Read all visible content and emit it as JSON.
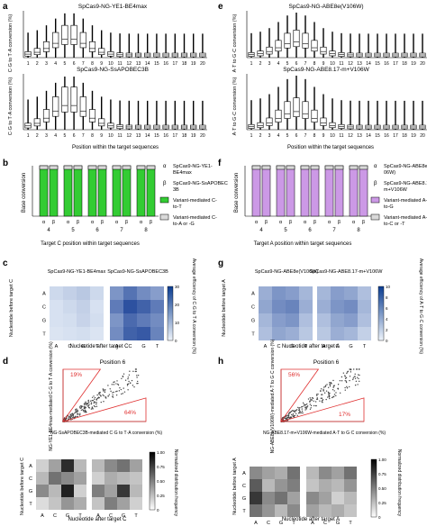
{
  "panels": {
    "a": {
      "letter": "a",
      "title_top": "SpCas9-NG-YE1-BE4max",
      "title_bottom": "SpCas9-NG-SsAPOBEC3B",
      "ylabel": "C·G to T·A conversion (%)",
      "xlabel": "Position within the target sequences",
      "positions": [
        "1",
        "2",
        "3",
        "4",
        "5",
        "6",
        "7",
        "8",
        "9",
        "10",
        "11",
        "12",
        "13",
        "14",
        "15",
        "16",
        "17",
        "18",
        "19",
        "20"
      ]
    },
    "e": {
      "letter": "e",
      "title_top": "SpCas9-NG-ABE8e(V106W)",
      "title_bottom": "SpCas9-NG-ABE8.17-m+V106W",
      "ylabel": "A·T to G·C conversion (%)",
      "xlabel": "Position within the target sequences",
      "positions": [
        "1",
        "2",
        "3",
        "4",
        "5",
        "6",
        "7",
        "8",
        "9",
        "10",
        "11",
        "12",
        "13",
        "14",
        "15",
        "16",
        "17",
        "18",
        "19",
        "20"
      ]
    },
    "b": {
      "letter": "b",
      "ylabel": "Base conversion",
      "xlabel": "Target C position within target sequences",
      "groups": [
        "4",
        "5",
        "6",
        "7",
        "8"
      ],
      "pair_labels": [
        "α",
        "β"
      ],
      "legend": [
        {
          "key": "α",
          "text": "SpCas9-NG-YE1-BE4max"
        },
        {
          "key": "β",
          "text": "SpCas9-NG-SsAPOBEC3B"
        },
        {
          "key": "",
          "text": "Variant-mediated C-to-T",
          "color": "#33cc33"
        },
        {
          "key": "",
          "text": "Variant-mediated C-to-A or -G",
          "color": "#d9d9d9"
        }
      ]
    },
    "f": {
      "letter": "f",
      "ylabel": "Base conversion",
      "xlabel": "Target A position within target sequences",
      "groups": [
        "4",
        "5",
        "6",
        "7",
        "8"
      ],
      "pair_labels": [
        "α",
        "β"
      ],
      "legend": [
        {
          "key": "α",
          "text": "SpCas9-NG-ABE8e(V106W)"
        },
        {
          "key": "β",
          "text": "SpCas9-NG-ABE8.17-m+V106W"
        },
        {
          "key": "",
          "text": "Variant-mediated A-to-G",
          "color": "#cc99e6"
        },
        {
          "key": "",
          "text": "Variant-mediated A-to-C or -T",
          "color": "#d9d9d9"
        }
      ]
    },
    "c": {
      "letter": "c",
      "title_left": "SpCas9-NG-YE1-BE4max",
      "title_right": "SpCas9-NG-SsAPOBEC3B",
      "ylabel": "Nucleotide before target C",
      "xlabel": "Nucleotide after target C",
      "bases": [
        "A",
        "C",
        "G",
        "T"
      ],
      "colorbar_label": "Average efficiency of C·G to T·A conversion (%)",
      "ticks": [
        "30",
        "20",
        "10",
        "0"
      ]
    },
    "g": {
      "letter": "g",
      "title_left": "SpCas9-NG-ABE8e(V106W)",
      "title_right": "SpCas9-NG-ABE8.17-m+V106W",
      "ylabel": "Nucleotide before target A",
      "xlabel": "Nucleotide after target A",
      "bases": [
        "A",
        "C",
        "G",
        "T"
      ],
      "colorbar_label": "Average efficiency of A·T to G·C conversion (%)",
      "ticks": [
        "10",
        "8",
        "6",
        "4",
        "2",
        "0"
      ]
    },
    "d": {
      "letter": "d",
      "position_label": "Position 6",
      "ylabel": "NG-YE1-BE4max-mediated C·G to T·A conversion (%)",
      "xlabel": "NG-SsAPOBEC3B-mediated C·G to T·A conversion (%)",
      "pct_top": "19%",
      "pct_bottom": "64%",
      "heat_ylabel": "Nucleotide before target C",
      "heat_xlabel": "Nucleotide after target C",
      "bases": [
        "A",
        "C",
        "G",
        "T"
      ],
      "colorbar_label": "Normalized distribution frequency",
      "ticks": [
        "1.00",
        "0.75",
        "0.50",
        "0.25",
        "0"
      ]
    },
    "h": {
      "letter": "h",
      "position_label": "Position 6",
      "ylabel": "NG-ABE8e(V106W)-mediated A·T to G·C conversion (%)",
      "xlabel": "NG-ABE8.17-m+V106W-mediated A·T to G·C conversion (%)",
      "pct_top": "56%",
      "pct_bottom": "17%",
      "heat_ylabel": "Nucleotide before target A",
      "heat_xlabel": "Nucleotide after target A",
      "bases": [
        "A",
        "C",
        "G",
        "T"
      ],
      "colorbar_label": "Normalized distribution frequency",
      "ticks": [
        "1.00",
        "0.75",
        "0.50",
        "0.25",
        "0"
      ]
    }
  },
  "colors": {
    "green": "#33cc33",
    "purple": "#cc99e6",
    "gray": "#d9d9d9",
    "red": "#e03030",
    "heat_blue": "#0b3d91"
  }
}
